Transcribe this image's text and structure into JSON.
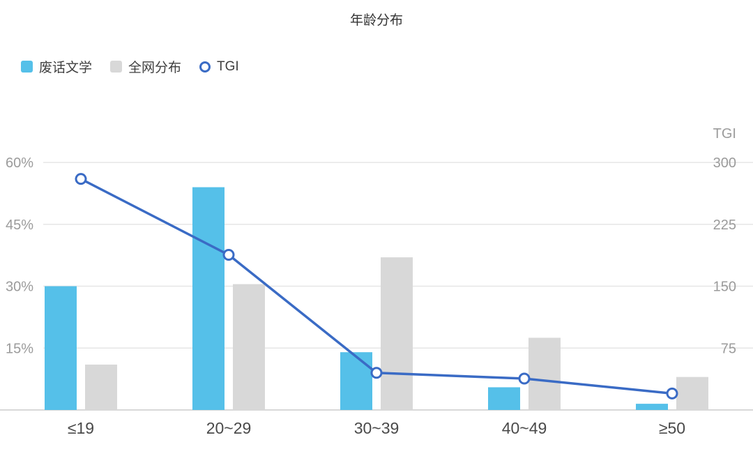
{
  "title": "年龄分布",
  "legend": {
    "items": [
      {
        "label": "废话文学",
        "type": "bar",
        "color": "#55c0e9"
      },
      {
        "label": "全网分布",
        "type": "bar",
        "color": "#d8d8d8"
      },
      {
        "label": "TGI",
        "type": "line",
        "color": "#3a6bc5"
      }
    ]
  },
  "chart_data": {
    "type": "bar+line combo",
    "title": "年龄分布",
    "categories": [
      "≤19",
      "20~29",
      "30~39",
      "40~49",
      "≥50"
    ],
    "series": [
      {
        "name": "废话文学",
        "type": "bar",
        "axis": "left",
        "unit": "%",
        "color": "#55c0e9",
        "values": [
          30,
          54,
          14,
          5.5,
          1.5
        ]
      },
      {
        "name": "全网分布",
        "type": "bar",
        "axis": "left",
        "unit": "%",
        "color": "#d8d8d8",
        "values": [
          11,
          30.5,
          37,
          17.5,
          8
        ]
      },
      {
        "name": "TGI",
        "type": "line",
        "axis": "right",
        "unit": "",
        "color": "#3a6bc5",
        "marker": "open-circle",
        "values": [
          280,
          188,
          45,
          38,
          20
        ]
      }
    ],
    "left_axis": {
      "max": 60,
      "ticks": [
        60,
        45,
        30,
        15
      ],
      "tick_labels": [
        "60%",
        "45%",
        "30%",
        "15%"
      ]
    },
    "right_axis": {
      "title": "TGI",
      "max": 300,
      "ticks": [
        300,
        225,
        150,
        75
      ],
      "tick_labels": [
        "300",
        "225",
        "150",
        "75"
      ]
    },
    "grid": "horizontal light gray lines at left-axis ticks",
    "legend_position": "top-left",
    "colors": {
      "grid_line": "#e6e6e6",
      "axis_line": "#cccccc",
      "tick_label": "#9b9b9b",
      "category_label": "#4a4a4a"
    }
  }
}
